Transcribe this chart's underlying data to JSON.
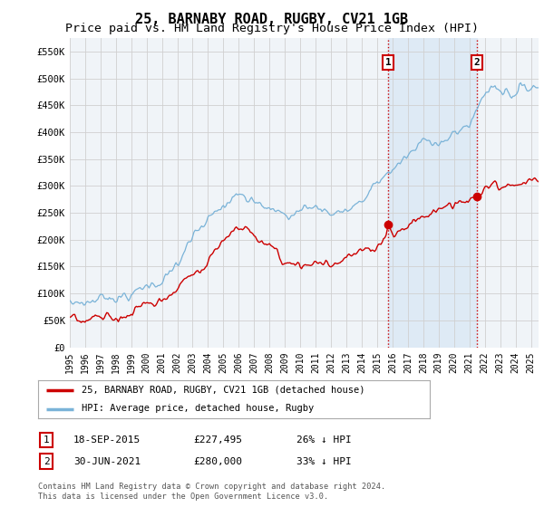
{
  "title": "25, BARNABY ROAD, RUGBY, CV21 1GB",
  "subtitle": "Price paid vs. HM Land Registry's House Price Index (HPI)",
  "title_fontsize": 11,
  "subtitle_fontsize": 9.5,
  "ylabel_ticks": [
    "£0",
    "£50K",
    "£100K",
    "£150K",
    "£200K",
    "£250K",
    "£300K",
    "£350K",
    "£400K",
    "£450K",
    "£500K",
    "£550K"
  ],
  "ytick_values": [
    0,
    50000,
    100000,
    150000,
    200000,
    250000,
    300000,
    350000,
    400000,
    450000,
    500000,
    550000
  ],
  "ylim": [
    0,
    575000
  ],
  "xlim_start": 1995.0,
  "xlim_end": 2025.5,
  "grid_color": "#d0d0d0",
  "hpi_color": "#7ab3d8",
  "price_color": "#cc0000",
  "marker1_date": 2015.72,
  "marker2_date": 2021.5,
  "marker1_price": 227495,
  "marker2_price": 280000,
  "legend_label1": "25, BARNABY ROAD, RUGBY, CV21 1GB (detached house)",
  "legend_label2": "HPI: Average price, detached house, Rugby",
  "table_row1": [
    "1",
    "18-SEP-2015",
    "£227,495",
    "26% ↓ HPI"
  ],
  "table_row2": [
    "2",
    "30-JUN-2021",
    "£280,000",
    "33% ↓ HPI"
  ],
  "footnote": "Contains HM Land Registry data © Crown copyright and database right 2024.\nThis data is licensed under the Open Government Licence v3.0.",
  "bg_color": "#ffffff",
  "plot_bg_color": "#f0f4f8",
  "vline_color": "#cc0000",
  "vline_shade_color": "#dce9f5"
}
